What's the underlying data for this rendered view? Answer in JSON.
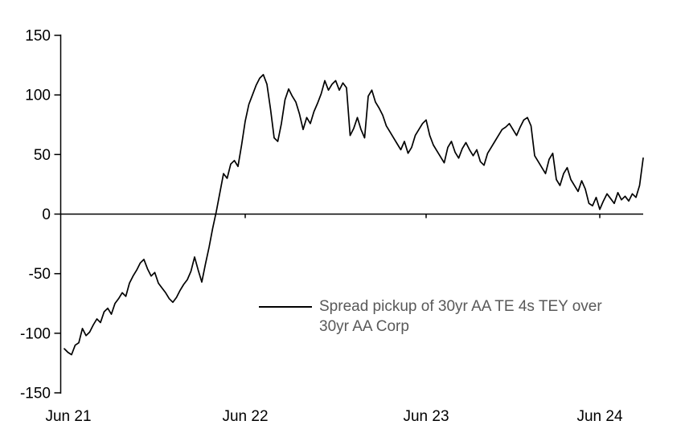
{
  "chart_data": {
    "type": "line",
    "title": "",
    "xlabel": "",
    "ylabel": "",
    "ylim": [
      -150,
      150
    ],
    "yticks": [
      150,
      100,
      50,
      0,
      -50,
      -100,
      -150
    ],
    "xticks": [
      {
        "label": "Jun 21",
        "index": 0
      },
      {
        "label": "Jun 22",
        "index": 50
      },
      {
        "label": "Jun 23",
        "index": 100
      },
      {
        "label": "Jun 24",
        "index": 148
      }
    ],
    "grid": false,
    "zero_line": true,
    "legend": {
      "position": "inside-lower-middle",
      "line1": "Spread pickup of 30yr AA TE 4s TEY over",
      "line2": "30yr AA Corp",
      "label": "Spread pickup of 30yr AA TE 4s TEY over 30yr AA Corp"
    },
    "series": [
      {
        "name": "Spread pickup of 30yr AA TE 4s TEY over 30yr AA Corp",
        "color": "#000000",
        "values": [
          -113,
          -116,
          -118,
          -110,
          -108,
          -96,
          -102,
          -99,
          -93,
          -88,
          -91,
          -82,
          -79,
          -84,
          -75,
          -71,
          -66,
          -69,
          -58,
          -52,
          -47,
          -41,
          -38,
          -46,
          -52,
          -49,
          -58,
          -62,
          -66,
          -71,
          -74,
          -70,
          -64,
          -59,
          -55,
          -48,
          -36,
          -47,
          -57,
          -42,
          -28,
          -12,
          2,
          18,
          34,
          30,
          42,
          45,
          40,
          58,
          78,
          92,
          100,
          108,
          114,
          117,
          109,
          88,
          64,
          61,
          76,
          96,
          105,
          99,
          94,
          84,
          71,
          81,
          76,
          86,
          93,
          101,
          112,
          104,
          109,
          112,
          104,
          110,
          106,
          66,
          72,
          81,
          71,
          64,
          99,
          104,
          94,
          89,
          83,
          74,
          69,
          64,
          59,
          54,
          61,
          51,
          56,
          66,
          71,
          76,
          79,
          66,
          58,
          53,
          48,
          43,
          56,
          61,
          52,
          47,
          55,
          60,
          54,
          49,
          54,
          44,
          41,
          51,
          56,
          61,
          66,
          71,
          73,
          76,
          71,
          66,
          73,
          79,
          81,
          74,
          49,
          44,
          39,
          34,
          46,
          51,
          29,
          24,
          34,
          39,
          29,
          24,
          19,
          28,
          21,
          9,
          7,
          14,
          4,
          11,
          17,
          13,
          9,
          18,
          12,
          15,
          11,
          17,
          14,
          24,
          47
        ]
      }
    ]
  }
}
